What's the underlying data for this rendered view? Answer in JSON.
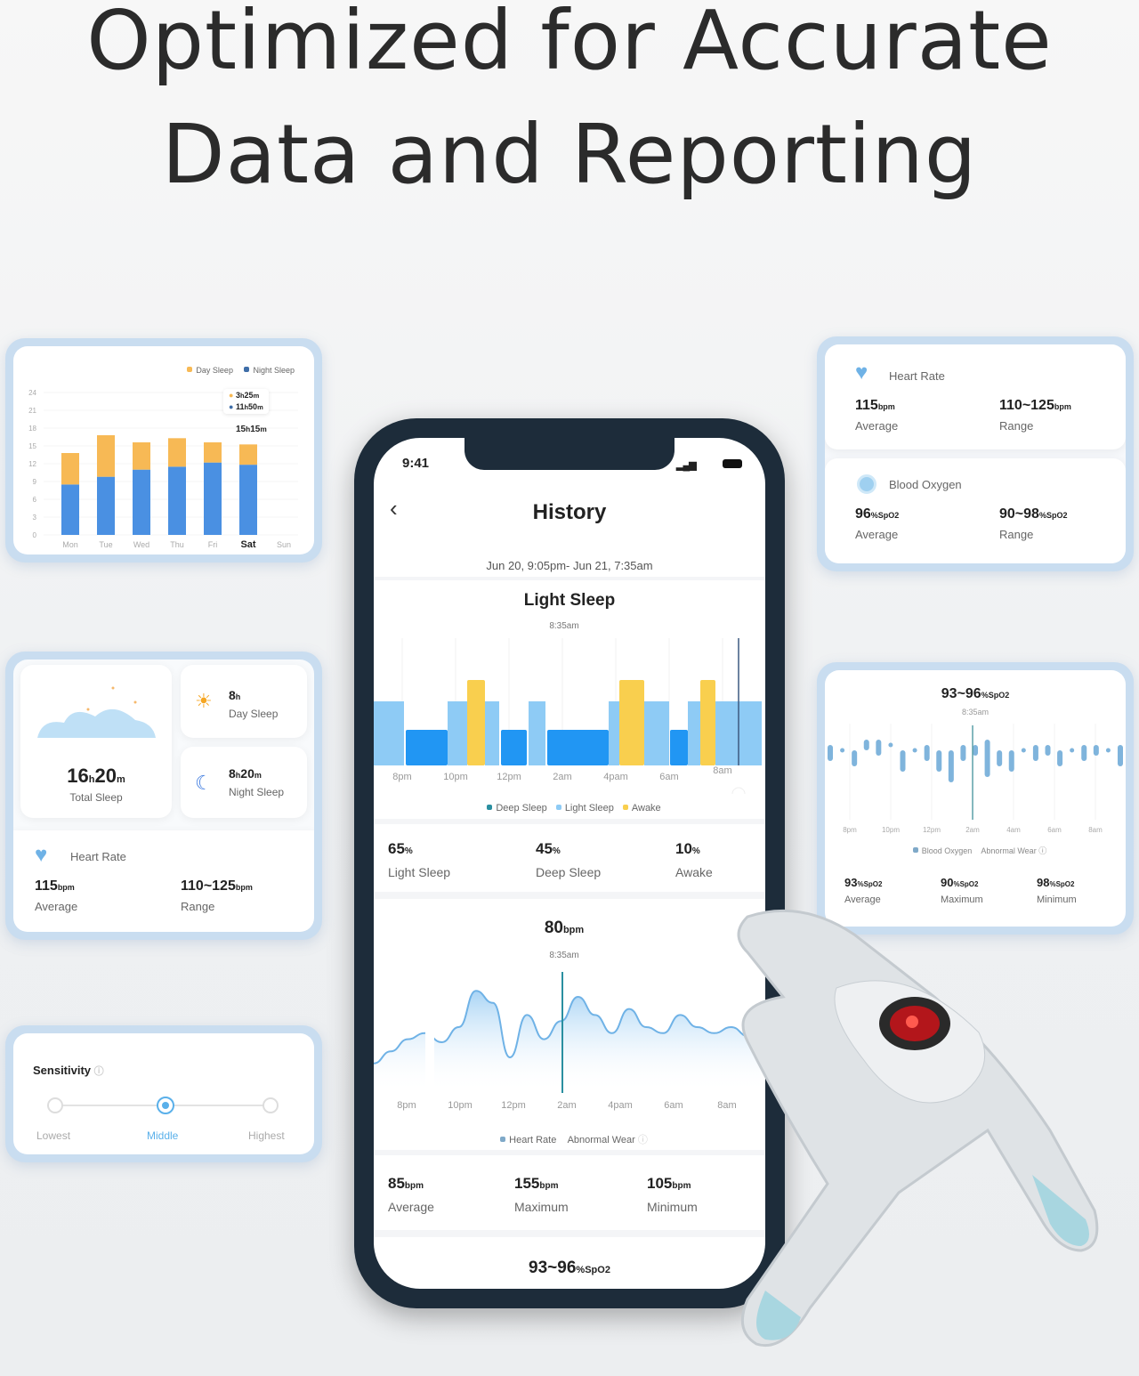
{
  "headline": {
    "line1": "Optimized for Accurate",
    "line2": "Data and Reporting"
  },
  "colors": {
    "night": "#4a90e2",
    "day": "#f7b955",
    "deep": "#2196f3",
    "light": "#8ecbf5",
    "awake": "#f9cf4e",
    "accent": "#5ab0ea",
    "frame": "#c9ddf0"
  },
  "weekly_chart": {
    "type": "bar",
    "legend": [
      "Day Sleep",
      "Night Sleep"
    ],
    "yticks": [
      "0",
      "3",
      "6",
      "9",
      "12",
      "15",
      "18",
      "21",
      "24"
    ],
    "ylim": [
      0,
      24
    ],
    "categories": [
      "Mon",
      "Tue",
      "Wed",
      "Thu",
      "Fri",
      "Sat",
      "Sun"
    ],
    "selected": "Sat",
    "series": [
      {
        "name": "Night Sleep",
        "values": [
          8.5,
          9.8,
          11,
          11.5,
          12.2,
          11.83,
          0
        ]
      },
      {
        "name": "Day Sleep",
        "values": [
          5.3,
          7,
          4.6,
          4.8,
          3.4,
          3.42,
          0
        ]
      }
    ],
    "tooltip": {
      "day": "3",
      "day_h": "h",
      "day_m": "25",
      "night": "11",
      "night_h": "h",
      "night_m": "50",
      "total": "15",
      "total_m": "15"
    }
  },
  "summary": {
    "total": {
      "h": "16",
      "m": "20",
      "label": "Total Sleep"
    },
    "day": {
      "h": "8",
      "label": "Day Sleep"
    },
    "night": {
      "h": "8",
      "m": "20",
      "label": "Night Sleep"
    },
    "heart": {
      "title": "Heart Rate",
      "avg": "115",
      "range": "110~125",
      "unit": "bpm",
      "avg_label": "Average",
      "range_label": "Range"
    }
  },
  "sensitivity": {
    "title": "Sensitivity",
    "options": [
      "Lowest",
      "Middle",
      "Highest"
    ],
    "selected": "Middle"
  },
  "vitals": {
    "heart": {
      "title": "Heart Rate",
      "avg": "115",
      "range": "110~125",
      "unit": "bpm",
      "avg_label": "Average",
      "range_label": "Range"
    },
    "oxygen": {
      "title": "Blood Oxygen",
      "avg": "96",
      "range": "90~98",
      "unit": "%SpO2",
      "avg_label": "Average",
      "range_label": "Range"
    }
  },
  "spo2_card": {
    "headline": "93~96",
    "unit": "%SpO2",
    "time": "8:35am",
    "xticks": [
      "8pm",
      "10pm",
      "12pm",
      "2am",
      "4am",
      "6am",
      "8am"
    ],
    "legend": [
      "Blood Oxygen",
      "Abnormal Wear"
    ],
    "ranges": [
      [
        93,
        96
      ],
      [
        94,
        95
      ],
      [
        92,
        95
      ],
      [
        95,
        97
      ],
      [
        94,
        97
      ],
      [
        95,
        96
      ],
      [
        91,
        95
      ],
      [
        94,
        95
      ],
      [
        93,
        96
      ],
      [
        91,
        95
      ],
      [
        89,
        95
      ],
      [
        93,
        96
      ],
      [
        94,
        96
      ],
      [
        90,
        97
      ],
      [
        92,
        95
      ],
      [
        91,
        95
      ],
      [
        94,
        95
      ],
      [
        93,
        96
      ],
      [
        94,
        96
      ],
      [
        92,
        95
      ],
      [
        94,
        95
      ],
      [
        93,
        96
      ],
      [
        94,
        96
      ],
      [
        94,
        95
      ],
      [
        92,
        96
      ]
    ],
    "stats": [
      {
        "v": "93",
        "label": "Average"
      },
      {
        "v": "90",
        "label": "Maximum"
      },
      {
        "v": "98",
        "label": "Minimum"
      }
    ]
  },
  "phone": {
    "time": "9:41",
    "title": "History",
    "date_range": "Jun 20, 9:05pm- Jun 21, 7:35am",
    "sleep": {
      "title": "Light Sleep",
      "time": "8:35am",
      "xticks": [
        "8pm",
        "10pm",
        "12pm",
        "2am",
        "4pam",
        "6am",
        "8am"
      ],
      "legend": [
        "Deep Sleep",
        "Light Sleep",
        "Awake"
      ],
      "segments": [
        [
          "light",
          "18:56",
          "20:04"
        ],
        [
          "deep",
          "20:08",
          "21:42"
        ],
        [
          "light",
          "21:42",
          "22:26"
        ],
        [
          "awake",
          "22:26",
          "23:06"
        ],
        [
          "light",
          "23:06",
          "23:38"
        ],
        [
          "deep",
          "23:42",
          "00:40"
        ],
        [
          "light",
          "00:44",
          "01:22"
        ],
        [
          "deep",
          "01:26",
          "03:44"
        ],
        [
          "light",
          "03:44",
          "04:08"
        ],
        [
          "awake",
          "04:08",
          "05:04"
        ],
        [
          "light",
          "05:04",
          "06:00"
        ],
        [
          "deep",
          "06:02",
          "06:42"
        ],
        [
          "light",
          "06:42",
          "07:10"
        ],
        [
          "awake",
          "07:10",
          "07:44"
        ],
        [
          "light",
          "07:44",
          "09:28"
        ]
      ],
      "stats": [
        {
          "v": "65",
          "u": "%",
          "label": "Light Sleep"
        },
        {
          "v": "45",
          "u": "%",
          "label": "Deep Sleep"
        },
        {
          "v": "10",
          "u": "%",
          "label": "Awake"
        }
      ]
    },
    "hr": {
      "value": "80",
      "unit": "bpm",
      "time": "8:35am",
      "xticks": [
        "8pm",
        "10pm",
        "12pm",
        "2am",
        "4pam",
        "6am",
        "8am"
      ],
      "legend": [
        "Heart Rate",
        "Abnormal Wear"
      ],
      "points": [
        88,
        92,
        96,
        98,
        95,
        100,
        112,
        108,
        90,
        104,
        96,
        102,
        110,
        104,
        98,
        106,
        100,
        98,
        104,
        100,
        98,
        100,
        97,
        98
      ],
      "stats": [
        {
          "v": "85",
          "label": "Average"
        },
        {
          "v": "155",
          "label": "Maximum"
        },
        {
          "v": "105",
          "label": "Minimum"
        }
      ]
    },
    "spo2": {
      "value": "93~96",
      "unit": "%SpO2"
    }
  }
}
